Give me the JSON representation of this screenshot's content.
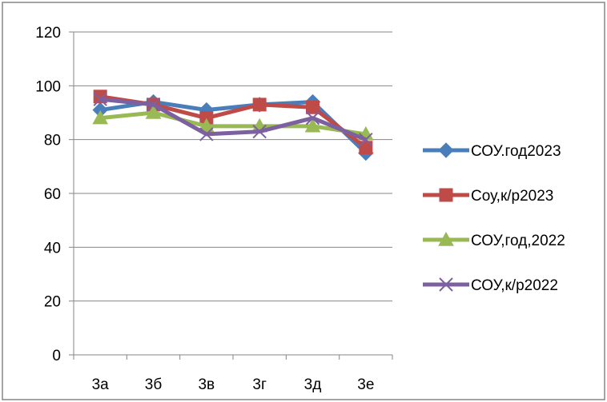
{
  "chart_data": {
    "type": "line",
    "title": "",
    "xlabel": "",
    "ylabel": "",
    "categories": [
      "3а",
      "3б",
      "3в",
      "3г",
      "3д",
      "3е"
    ],
    "ylim": [
      0,
      120
    ],
    "yticks": [
      0,
      20,
      40,
      60,
      80,
      100,
      120
    ],
    "grid": "horizontal",
    "legend_position": "right",
    "series": [
      {
        "name": "СОУ.год2023",
        "values": [
          91,
          94,
          91,
          93,
          94,
          75
        ],
        "color": "#4a7ebb",
        "marker": "diamond"
      },
      {
        "name": "Соу,к/р2023",
        "values": [
          96,
          93,
          88,
          93,
          92,
          77
        ],
        "color": "#be4b48",
        "marker": "square"
      },
      {
        "name": "СОУ,год,2022",
        "values": [
          88,
          90,
          85,
          85,
          85,
          82
        ],
        "color": "#98b954",
        "marker": "triangle"
      },
      {
        "name": "СОУ,к/р2022",
        "values": [
          95,
          93,
          82,
          83,
          88,
          80
        ],
        "color": "#7d60a0",
        "marker": "x"
      }
    ]
  }
}
